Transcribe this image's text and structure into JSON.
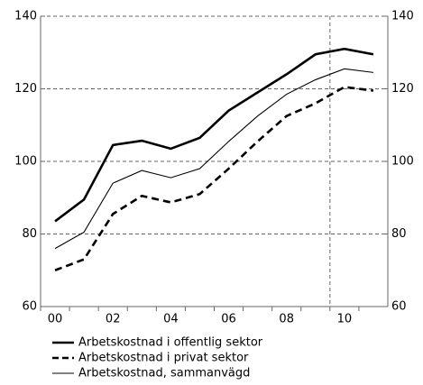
{
  "chart_data": {
    "type": "line",
    "categories": [
      "00",
      null,
      "02",
      null,
      "04",
      null,
      "06",
      null,
      "08",
      null,
      "10",
      null
    ],
    "series": [
      {
        "name": "Arbetskostnad i offentlig sektor",
        "color": "#000000",
        "style": "thick",
        "values": [
          83.5,
          89.5,
          104.5,
          105.7,
          103.5,
          106.5,
          114,
          119,
          124,
          129.5,
          131,
          129.5
        ]
      },
      {
        "name": "Arbetskostnad i privat sektor",
        "color": "#000000",
        "style": "dashed",
        "values": [
          70,
          73,
          85.5,
          90.5,
          88.7,
          91,
          98,
          105.5,
          112.5,
          116,
          120.5,
          119.5
        ]
      },
      {
        "name": "Arbetskostnad, sammanvägd",
        "color": "#000000",
        "style": "thin",
        "values": [
          76,
          80.5,
          94,
          97.5,
          95.5,
          98,
          105.5,
          112.5,
          118.5,
          122.5,
          125.5,
          124.5
        ]
      }
    ],
    "ylim": [
      60,
      140
    ],
    "yticks": [
      60,
      80,
      100,
      120,
      140
    ],
    "y2lim": [
      60,
      140
    ],
    "y2ticks": [
      60,
      80,
      100,
      120,
      140
    ],
    "grid": true,
    "vline": 9.5,
    "legend": "bottom"
  }
}
